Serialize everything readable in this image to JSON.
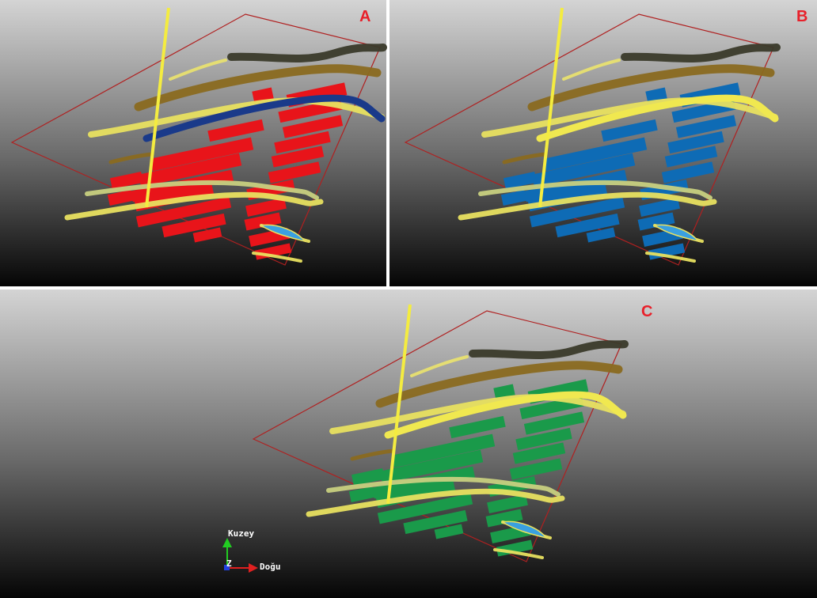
{
  "panels": [
    {
      "label": "A"
    },
    {
      "label": "B"
    },
    {
      "label": "C"
    }
  ],
  "axes": {
    "north": "Kuzey",
    "east": "Doğu",
    "up": "Z"
  }
}
